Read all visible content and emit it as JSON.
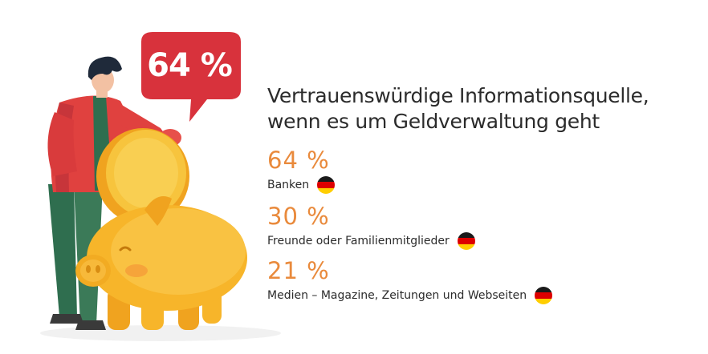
{
  "illustration": {
    "bubble_text": "64 %",
    "colors": {
      "bubble": "#d8323c",
      "jacket": "#e0413f",
      "pants": "#2f6e4f",
      "pig": "#f7b52a",
      "coin": "#f5c23a"
    }
  },
  "headline": {
    "line1": "Vertrauenswürdige Informationsquelle,",
    "line2": "wenn es um Geldverwaltung geht"
  },
  "stats": [
    {
      "value": "64 %",
      "label": "Banken",
      "flag_icon": "germany-flag-icon"
    },
    {
      "value": "30 %",
      "label": "Freunde oder Familienmitglieder",
      "flag_icon": "germany-flag-icon"
    },
    {
      "value": "21 %",
      "label": "Medien – Magazine, Zeitungen und Webseiten",
      "flag_icon": "germany-flag-icon"
    }
  ],
  "colors": {
    "accent": "#e98a3c",
    "text": "#2b2b2b",
    "flag_black": "#1a1a1a",
    "flag_red": "#dd0000",
    "flag_gold": "#ffce00"
  }
}
